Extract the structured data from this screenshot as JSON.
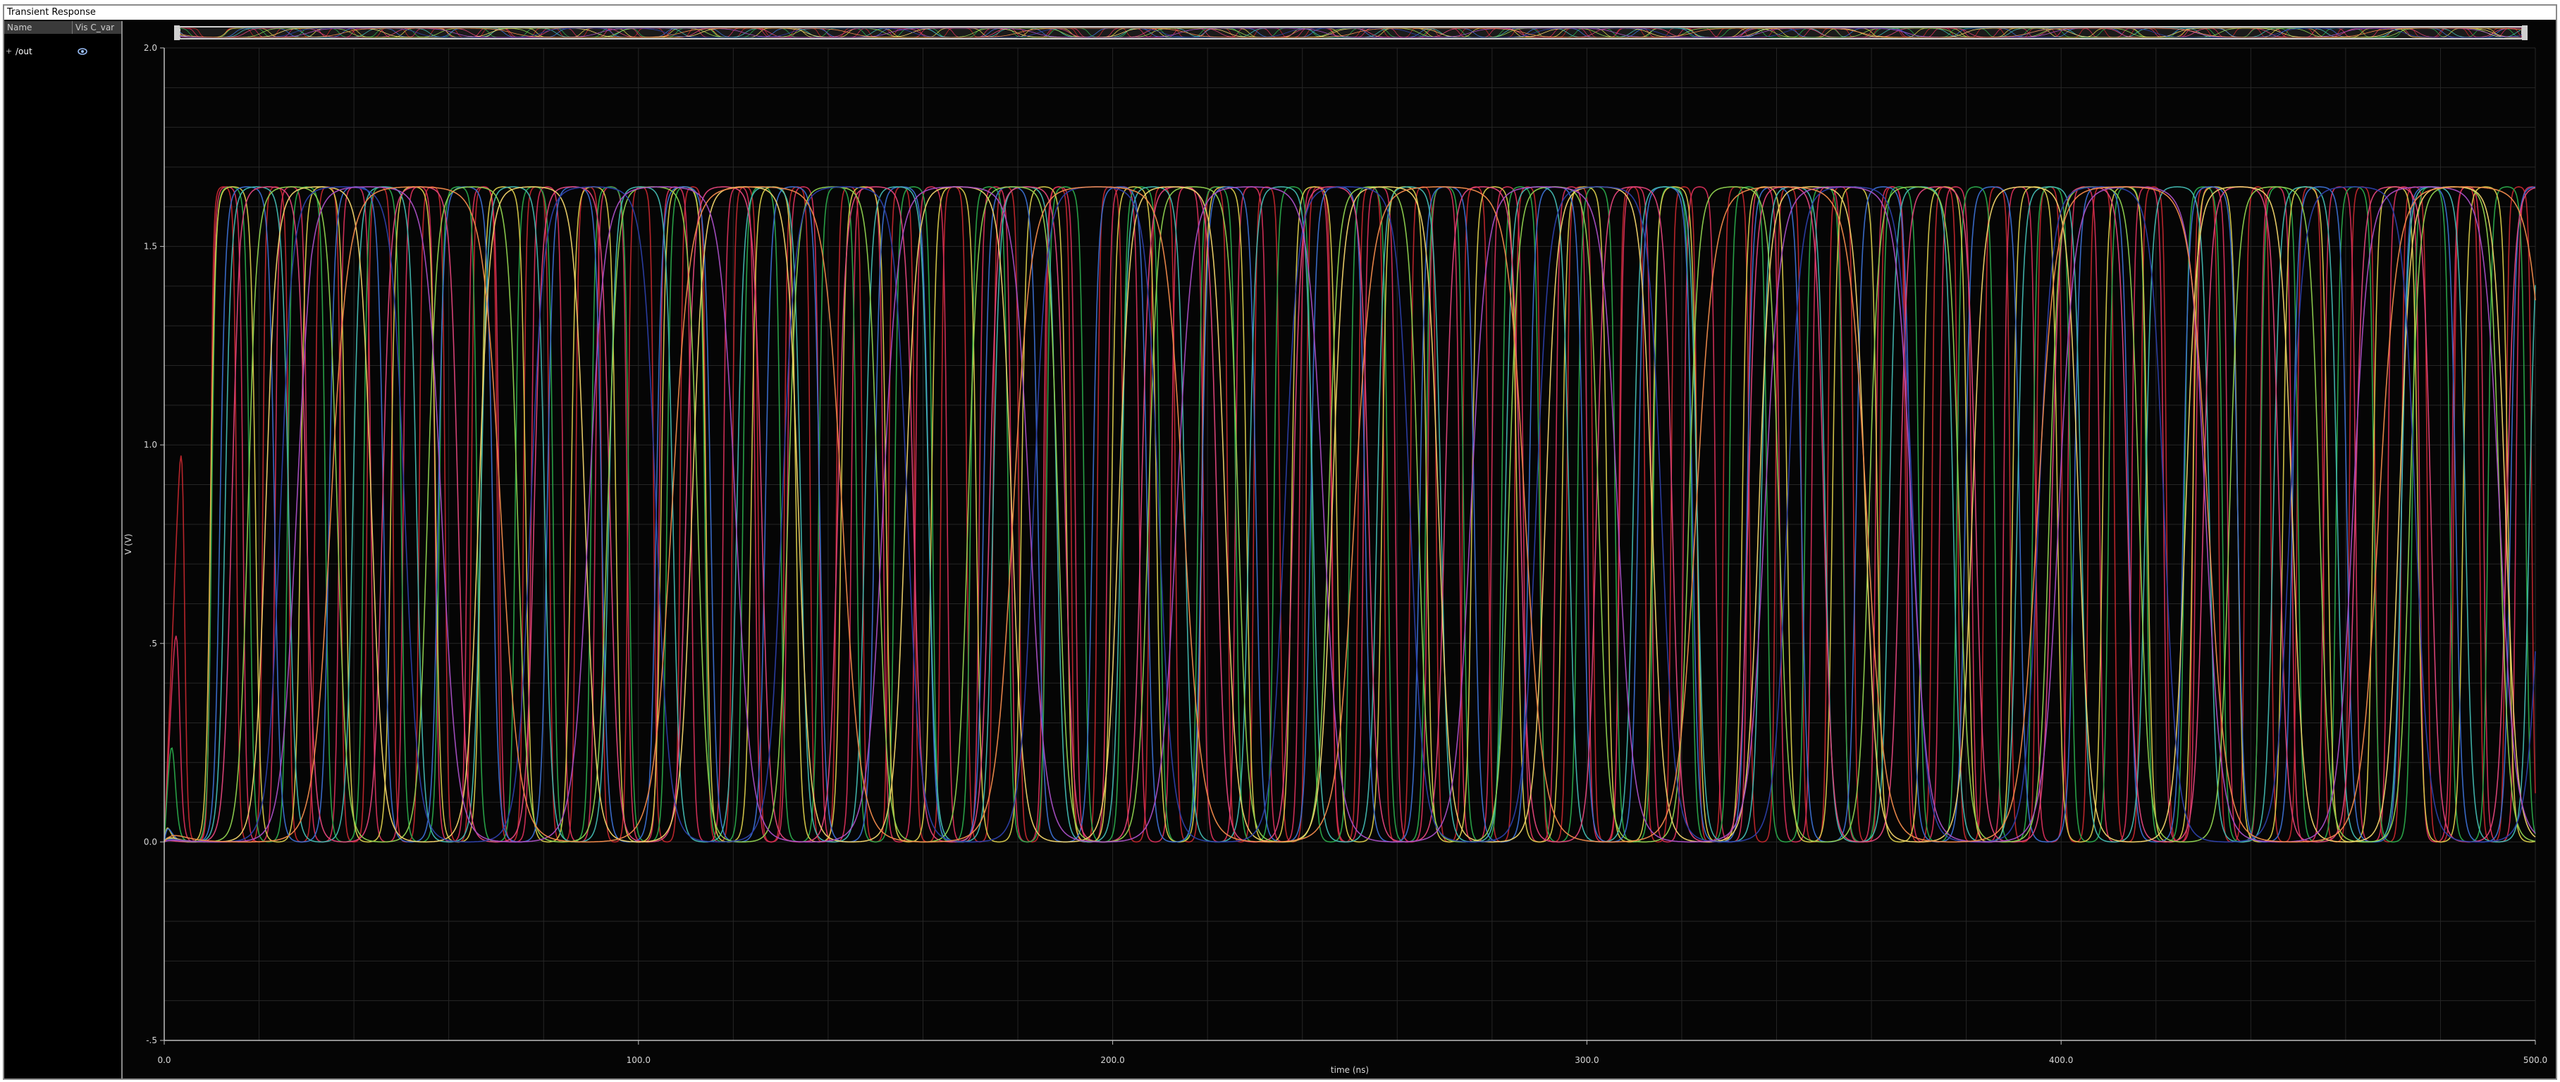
{
  "window": {
    "title": "Transient Response"
  },
  "sidebar": {
    "column_name": "Name",
    "column_vis": "Vis C_var",
    "signals": [
      {
        "name": "/out",
        "expand": "+"
      }
    ]
  },
  "icons": {
    "expand": "expand-icon",
    "visibility": "eye-icon"
  },
  "colors": {
    "background": "#050505",
    "grid": "#262626",
    "axis": "#bfbfbf",
    "series_palette": [
      "#c1272d",
      "#e0457b",
      "#2aa84a",
      "#d7c94a",
      "#3b6fd0",
      "#42b8b0",
      "#a94fc4",
      "#8fd14f",
      "#f08a4b",
      "#2c3fa8"
    ]
  },
  "chart_data": {
    "type": "line",
    "title": "",
    "xlabel": "time (ns)",
    "ylabel": "V (V)",
    "xlim": [
      0,
      500
    ],
    "ylim": [
      -0.5,
      2.0
    ],
    "xticks": [
      0,
      100,
      200,
      300,
      400,
      500
    ],
    "xtick_labels": [
      "0.0",
      "100.0",
      "200.0",
      "300.0",
      "400.0",
      "500.0"
    ],
    "yticks": [
      -0.5,
      0.0,
      0.5,
      1.0,
      1.5,
      2.0
    ],
    "ytick_labels": [
      "-.5",
      "0.0",
      ".5",
      "1.0",
      "1.5",
      "2.0"
    ],
    "grid": true,
    "legend": "none",
    "amplitude_high": 1.65,
    "amplitude_low": 0.0,
    "series": [
      {
        "period_ns": 11.0,
        "phase_ns": 4.0,
        "color": "#c1272d"
      },
      {
        "period_ns": 13.5,
        "phase_ns": 7.0,
        "color": "#d52f5a"
      },
      {
        "period_ns": 16.0,
        "phase_ns": 10.0,
        "color": "#2aa84a"
      },
      {
        "period_ns": 19.0,
        "phase_ns": 14.0,
        "color": "#d7c94a"
      },
      {
        "period_ns": 23.0,
        "phase_ns": 17.0,
        "color": "#3b6fd0"
      },
      {
        "period_ns": 27.0,
        "phase_ns": 21.0,
        "color": "#42b8b0"
      },
      {
        "period_ns": 32.0,
        "phase_ns": 26.0,
        "color": "#e0457b"
      },
      {
        "period_ns": 38.0,
        "phase_ns": 30.0,
        "color": "#8fd14f"
      },
      {
        "period_ns": 45.0,
        "phase_ns": 35.0,
        "color": "#f0d36a"
      },
      {
        "period_ns": 53.0,
        "phase_ns": 42.0,
        "color": "#2c3fa8"
      },
      {
        "period_ns": 62.0,
        "phase_ns": 50.0,
        "color": "#a94fc4"
      },
      {
        "period_ns": 72.0,
        "phase_ns": 55.0,
        "color": "#f08a4b"
      }
    ]
  }
}
